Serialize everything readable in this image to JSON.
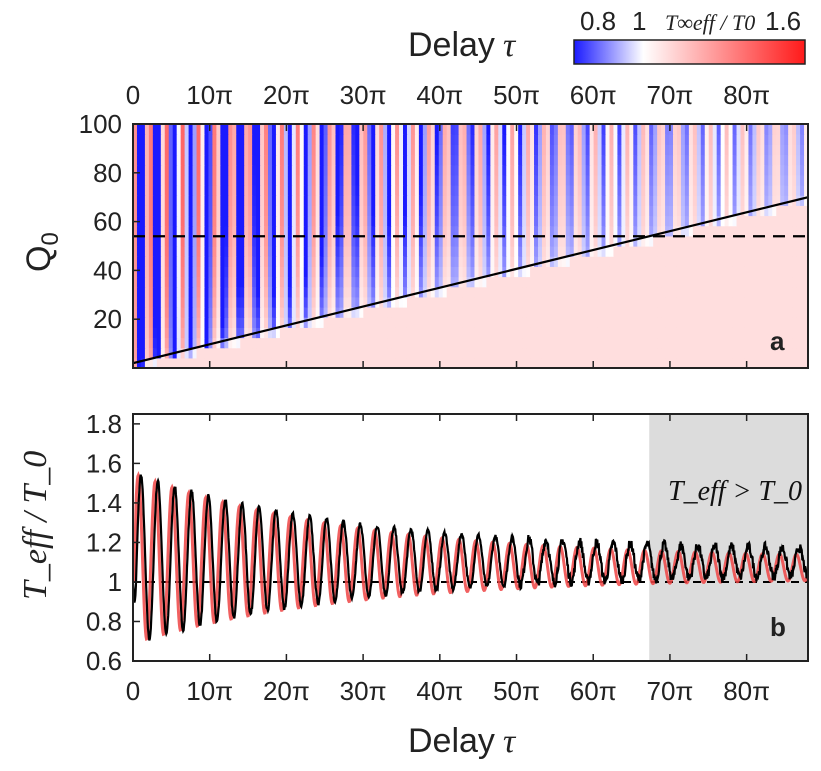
{
  "chart_data": [
    {
      "panel": "a",
      "type": "heatmap",
      "panel_label": "a",
      "xlabel": "Delay",
      "xlabel_symbol": "τ",
      "ylabel": "Q",
      "ylabel_sub": "0",
      "x_unit": "π",
      "xlim": [
        0,
        88
      ],
      "ylim": [
        0,
        100
      ],
      "x_ticks": [
        0,
        10,
        20,
        30,
        40,
        50,
        60,
        70,
        80
      ],
      "x_tick_labels": [
        "0",
        "10π",
        "20π",
        "30π",
        "40π",
        "50π",
        "60π",
        "70π",
        "80π"
      ],
      "y_ticks": [
        20,
        40,
        60,
        80,
        100
      ],
      "y_tick_labels": [
        "20",
        "40",
        "60",
        "80",
        "100"
      ],
      "colorbar": {
        "range": [
          0.7,
          1.7
        ],
        "tick_labels": [
          "0.8",
          "1",
          "1.6"
        ],
        "label": "T∞eff / T0",
        "colors": [
          "#1a1aff",
          "#ffffff",
          "#ff1a1a"
        ]
      },
      "lines": [
        {
          "name": "threshold",
          "style": "solid",
          "x": [
            0,
            88
          ],
          "y": [
            2,
            70
          ]
        },
        {
          "name": "Q0 slice",
          "style": "dashed",
          "x": [
            0,
            88
          ],
          "y": [
            54,
            54
          ]
        }
      ]
    },
    {
      "panel": "b",
      "type": "line",
      "panel_label": "b",
      "xlabel": "Delay",
      "xlabel_symbol": "τ",
      "ylabel": "T_eff / T_0",
      "x_unit": "π",
      "xlim": [
        0,
        88
      ],
      "ylim": [
        0.6,
        1.85
      ],
      "x_ticks": [
        0,
        10,
        20,
        30,
        40,
        50,
        60,
        70,
        80
      ],
      "x_tick_labels": [
        "0",
        "10π",
        "20π",
        "30π",
        "40π",
        "50π",
        "60π",
        "70π",
        "80π"
      ],
      "y_ticks": [
        0.6,
        0.8,
        1.0,
        1.2,
        1.4,
        1.6,
        1.8
      ],
      "y_tick_labels": [
        "0.6",
        "0.8",
        "1",
        "1.2",
        "1.4",
        "1.6",
        "1.8"
      ],
      "reference_line": 1.0,
      "shaded_region": {
        "x_start": 67.3,
        "x_end": 88,
        "label": "T_eff > T_0"
      },
      "series": [
        {
          "name": "measured",
          "color": "#000000",
          "envelope_start": 0.38,
          "envelope_floor": 0.055,
          "mean_start": 1.12,
          "mean_end": 1.1,
          "noise": 0.03
        },
        {
          "name": "theory",
          "color": "#ee4444",
          "envelope_start": 0.38,
          "envelope_floor": 0.05,
          "mean_start": 1.12,
          "mean_end": 1.07,
          "noise": 0.0
        }
      ]
    }
  ]
}
